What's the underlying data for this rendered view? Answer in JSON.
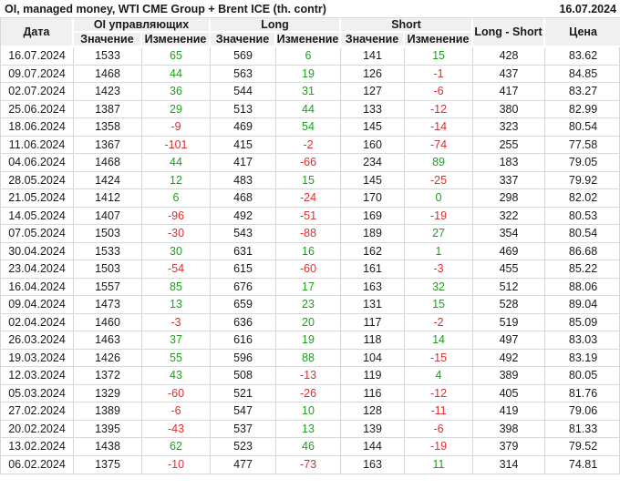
{
  "title": "OI, managed money, WTI CME Group + Brent ICE (th. contr)",
  "report_date": "16.07.2024",
  "colors": {
    "positive": "#1f9d1f",
    "negative": "#dc2e2e",
    "header_bg": "#f0f0f0",
    "grid_line": "#d8d8d8",
    "text": "#1a1a1a"
  },
  "table": {
    "headers": {
      "date": "Дата",
      "oi_group": "OI управляющих",
      "long_group": "Long",
      "short_group": "Short",
      "long_short": "Long - Short",
      "price": "Цена",
      "value_label": "Значение",
      "change_label": "Изменение"
    }
  },
  "chart_data": {
    "type": "table",
    "title": "OI, managed money, WTI CME Group + Brent ICE (th. contr)",
    "as_of_date": "16.07.2024",
    "columns": [
      "Дата",
      "OI управляющих Значение",
      "OI управляющих Изменение",
      "Long Значение",
      "Long Изменение",
      "Short Значение",
      "Short Изменение",
      "Long - Short",
      "Цена"
    ],
    "rows": [
      [
        "16.07.2024",
        1533,
        65,
        569,
        6,
        141,
        15,
        428,
        83.62
      ],
      [
        "09.07.2024",
        1468,
        44,
        563,
        19,
        126,
        -1,
        437,
        84.85
      ],
      [
        "02.07.2024",
        1423,
        36,
        544,
        31,
        127,
        -6,
        417,
        83.27
      ],
      [
        "25.06.2024",
        1387,
        29,
        513,
        44,
        133,
        -12,
        380,
        82.99
      ],
      [
        "18.06.2024",
        1358,
        -9,
        469,
        54,
        145,
        -14,
        323,
        80.54
      ],
      [
        "11.06.2024",
        1367,
        -101,
        415,
        -2,
        160,
        -74,
        255,
        77.58
      ],
      [
        "04.06.2024",
        1468,
        44,
        417,
        -66,
        234,
        89,
        183,
        79.05
      ],
      [
        "28.05.2024",
        1424,
        12,
        483,
        15,
        145,
        -25,
        337,
        79.92
      ],
      [
        "21.05.2024",
        1412,
        6,
        468,
        -24,
        170,
        0,
        298,
        82.02
      ],
      [
        "14.05.2024",
        1407,
        -96,
        492,
        -51,
        169,
        -19,
        322,
        80.53
      ],
      [
        "07.05.2024",
        1503,
        -30,
        543,
        -88,
        189,
        27,
        354,
        80.54
      ],
      [
        "30.04.2024",
        1533,
        30,
        631,
        16,
        162,
        1,
        469,
        86.68
      ],
      [
        "23.04.2024",
        1503,
        -54,
        615,
        -60,
        161,
        -3,
        455,
        85.22
      ],
      [
        "16.04.2024",
        1557,
        85,
        676,
        17,
        163,
        32,
        512,
        88.06
      ],
      [
        "09.04.2024",
        1473,
        13,
        659,
        23,
        131,
        15,
        528,
        89.04
      ],
      [
        "02.04.2024",
        1460,
        -3,
        636,
        20,
        117,
        -2,
        519,
        85.09
      ],
      [
        "26.03.2024",
        1463,
        37,
        616,
        19,
        118,
        14,
        497,
        83.03
      ],
      [
        "19.03.2024",
        1426,
        55,
        596,
        88,
        104,
        -15,
        492,
        83.19
      ],
      [
        "12.03.2024",
        1372,
        43,
        508,
        -13,
        119,
        4,
        389,
        80.05
      ],
      [
        "05.03.2024",
        1329,
        -60,
        521,
        -26,
        116,
        -12,
        405,
        81.76
      ],
      [
        "27.02.2024",
        1389,
        -6,
        547,
        10,
        128,
        -11,
        419,
        79.06
      ],
      [
        "20.02.2024",
        1395,
        -43,
        537,
        13,
        139,
        -6,
        398,
        81.33
      ],
      [
        "13.02.2024",
        1438,
        62,
        523,
        46,
        144,
        -19,
        379,
        79.52
      ],
      [
        "06.02.2024",
        1375,
        -10,
        477,
        -73,
        163,
        11,
        314,
        74.81
      ]
    ]
  }
}
